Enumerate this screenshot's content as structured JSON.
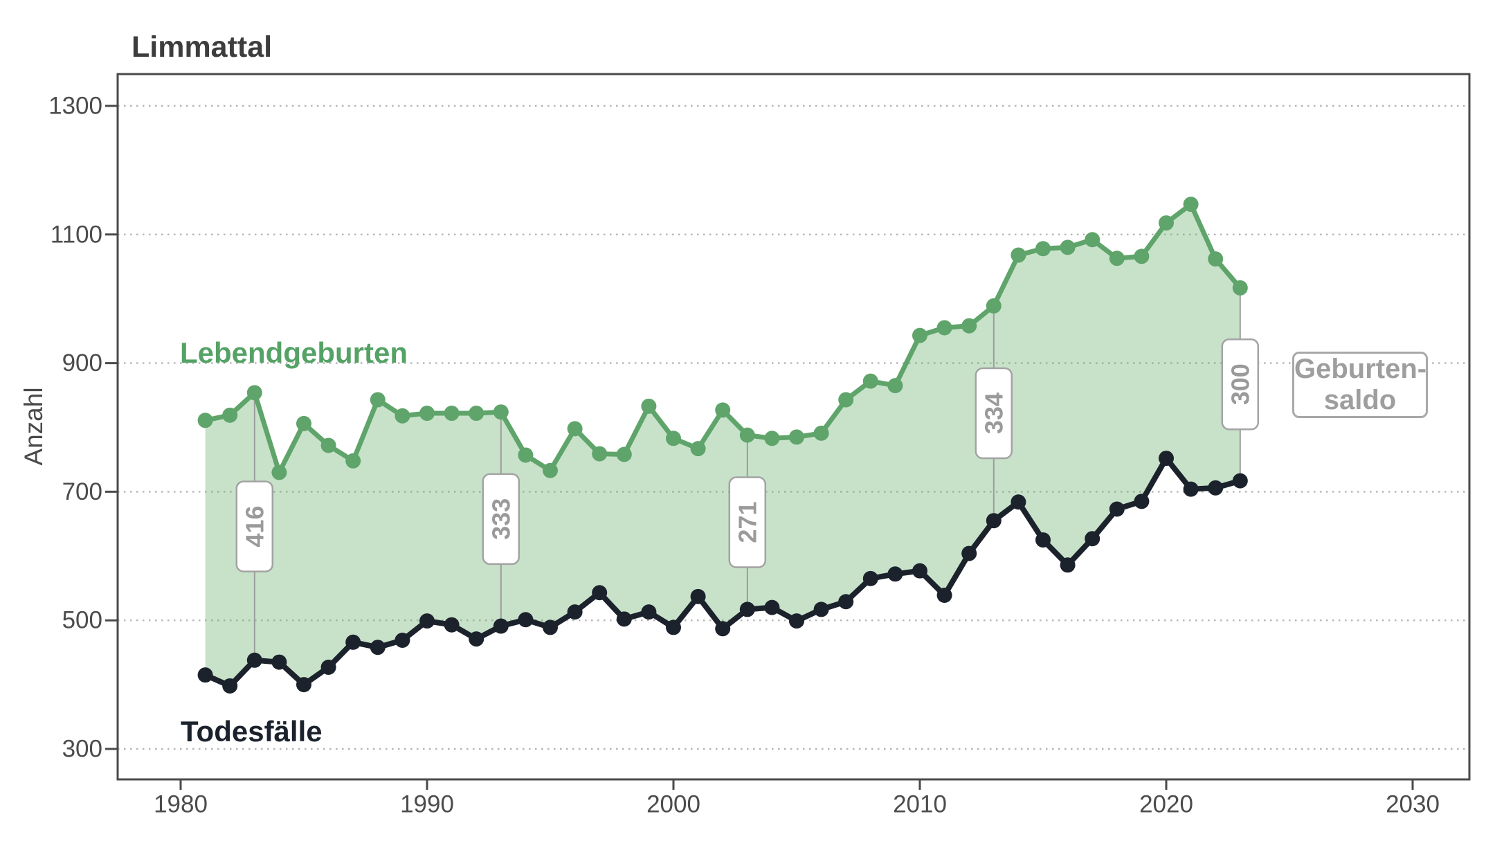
{
  "title": "Limmattal",
  "y_axis": {
    "label": "Anzahl",
    "ticks": [
      300,
      500,
      700,
      900,
      1100,
      1300
    ],
    "range": [
      300,
      1300
    ]
  },
  "x_axis": {
    "ticks": [
      1980,
      1990,
      2000,
      2010,
      2020,
      2030
    ],
    "range": [
      1978,
      2031
    ]
  },
  "series_labels": {
    "births": "Lebendgeburten",
    "deaths": "Todesfälle"
  },
  "legend_box": {
    "line1": "Geburten-",
    "line2": "saldo"
  },
  "colors": {
    "births_line": "#5fa46a",
    "births_fill": "rgba(111,178,115,0.38)",
    "deaths_line": "#1b222c",
    "annotation_text": "#9a9a9a",
    "annotation_border": "#a3a3a3",
    "grid": "#b4b4b4",
    "axis": "#4a4a4a",
    "tick_label": "#4c4c4c",
    "title": "#3d3d3d"
  },
  "chart_data": {
    "type": "area",
    "title": "Limmattal",
    "ylabel": "Anzahl",
    "ylim": [
      300,
      1300
    ],
    "xlim": [
      1978,
      2031
    ],
    "grid": "horizontal-dotted",
    "legend_position": "right-outside",
    "band_label": "Geburten-saldo",
    "x": [
      1981,
      1982,
      1983,
      1984,
      1985,
      1986,
      1987,
      1988,
      1989,
      1990,
      1991,
      1992,
      1993,
      1994,
      1995,
      1996,
      1997,
      1998,
      1999,
      2000,
      2001,
      2002,
      2003,
      2004,
      2005,
      2006,
      2007,
      2008,
      2009,
      2010,
      2011,
      2012,
      2013,
      2014,
      2015,
      2016,
      2017,
      2018,
      2019,
      2020,
      2021,
      2022,
      2023
    ],
    "series": [
      {
        "name": "Lebendgeburten",
        "values": [
          811,
          819,
          854,
          730,
          806,
          772,
          748,
          843,
          818,
          822,
          822,
          822,
          824,
          757,
          733,
          798,
          759,
          758,
          833,
          783,
          767,
          827,
          788,
          783,
          785,
          791,
          843,
          872,
          865,
          943,
          955,
          958,
          989,
          1068,
          1078,
          1080,
          1092,
          1063,
          1066,
          1118,
          1147,
          1062,
          1017
        ]
      },
      {
        "name": "Todesfälle",
        "values": [
          415,
          398,
          438,
          435,
          400,
          427,
          466,
          458,
          469,
          499,
          493,
          471,
          491,
          501,
          489,
          513,
          543,
          502,
          513,
          489,
          537,
          487,
          517,
          520,
          499,
          517,
          529,
          565,
          572,
          577,
          539,
          604,
          655,
          684,
          625,
          586,
          627,
          673,
          685,
          752,
          704,
          706,
          717
        ]
      }
    ],
    "annotations": [
      {
        "year": 1983,
        "label": "416"
      },
      {
        "year": 1993,
        "label": "333"
      },
      {
        "year": 2003,
        "label": "271"
      },
      {
        "year": 2013,
        "label": "334"
      },
      {
        "year": 2023,
        "label": "300"
      }
    ]
  }
}
